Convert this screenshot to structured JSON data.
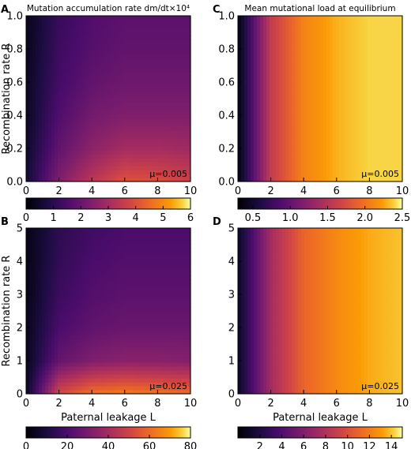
{
  "chart_data": [
    {
      "panel": "A",
      "type": "heatmap",
      "title": "Mutation accumulation rate dm/dt×10⁴",
      "xlabel": "",
      "ylabel": "Recombination rate R",
      "xlim": [
        0,
        10
      ],
      "ylim": [
        0,
        1.0
      ],
      "xticks": [
        "0",
        "2",
        "4",
        "6",
        "8",
        "10"
      ],
      "yticks": [
        "0.0",
        "0.2",
        "0.4",
        "0.6",
        "0.8",
        "1.0"
      ],
      "annotation": "μ=0.005",
      "colormap": "inferno",
      "colorbar": {
        "range": [
          0,
          6
        ],
        "ticks": [
          "0",
          "1",
          "2",
          "3",
          "4",
          "5",
          "6"
        ]
      },
      "x": [
        0,
        2,
        4,
        6,
        8,
        10
      ],
      "y": [
        0.0,
        0.2,
        0.4,
        0.6,
        0.8,
        1.0
      ],
      "z": [
        [
          0.6,
          2.4,
          3.4,
          4.1,
          4.0,
          3.7
        ],
        [
          0.5,
          1.9,
          2.6,
          3.0,
          3.0,
          2.9
        ],
        [
          0.4,
          1.6,
          2.2,
          2.4,
          2.4,
          2.4
        ],
        [
          0.4,
          1.4,
          1.9,
          2.1,
          2.1,
          2.1
        ],
        [
          0.3,
          1.3,
          1.7,
          1.9,
          1.9,
          1.9
        ],
        [
          0.3,
          1.2,
          1.6,
          1.8,
          1.8,
          1.8
        ]
      ]
    },
    {
      "panel": "C",
      "type": "heatmap",
      "title": "Mean mutational load at equilibrium",
      "xlabel": "",
      "ylabel": "",
      "xlim": [
        0,
        10
      ],
      "ylim": [
        0,
        1.0
      ],
      "xticks": [
        "0",
        "2",
        "4",
        "6",
        "8",
        "10"
      ],
      "yticks": [
        "0.0",
        "0.2",
        "0.4",
        "0.6",
        "0.8",
        "1.0"
      ],
      "annotation": "μ=0.005",
      "colormap": "inferno",
      "colorbar": {
        "range": [
          0.3,
          2.5
        ],
        "ticks": [
          "0.5",
          "1.0",
          "1.5",
          "2.0",
          "2.5"
        ]
      },
      "x": [
        0,
        2,
        4,
        6,
        8,
        10
      ],
      "y": [
        0.0,
        0.2,
        0.4,
        0.6,
        0.8,
        1.0
      ],
      "z": [
        [
          0.35,
          1.6,
          2.1,
          2.3,
          2.4,
          2.4
        ],
        [
          0.35,
          1.6,
          2.1,
          2.3,
          2.4,
          2.4
        ],
        [
          0.35,
          1.6,
          2.1,
          2.3,
          2.4,
          2.4
        ],
        [
          0.35,
          1.6,
          2.1,
          2.3,
          2.4,
          2.4
        ],
        [
          0.35,
          1.6,
          2.1,
          2.3,
          2.4,
          2.4
        ],
        [
          0.35,
          1.6,
          2.1,
          2.3,
          2.4,
          2.4
        ]
      ]
    },
    {
      "panel": "B",
      "type": "heatmap",
      "title": "",
      "xlabel": "Paternal leakage L",
      "ylabel": "Recombination rate R",
      "xlim": [
        0,
        10
      ],
      "ylim": [
        0,
        5
      ],
      "xticks": [
        "0",
        "2",
        "4",
        "6",
        "8",
        "10"
      ],
      "yticks": [
        "0",
        "1",
        "2",
        "3",
        "4",
        "5"
      ],
      "annotation": "μ=0.025",
      "colormap": "inferno",
      "colorbar": {
        "range": [
          0,
          80
        ],
        "ticks": [
          "0",
          "20",
          "40",
          "60",
          "80"
        ]
      },
      "x": [
        0,
        2,
        4,
        6,
        8,
        10
      ],
      "y": [
        0,
        1,
        2,
        3,
        4,
        5
      ],
      "z": [
        [
          5,
          52,
          62,
          64,
          62,
          60
        ],
        [
          4,
          26,
          32,
          34,
          34,
          33
        ],
        [
          4,
          20,
          25,
          27,
          27,
          27
        ],
        [
          3,
          17,
          22,
          24,
          24,
          24
        ],
        [
          3,
          15,
          20,
          22,
          22,
          22
        ],
        [
          3,
          14,
          18,
          20,
          20,
          20
        ]
      ]
    },
    {
      "panel": "D",
      "type": "heatmap",
      "title": "",
      "xlabel": "Paternal leakage L",
      "ylabel": "",
      "xlim": [
        0,
        10
      ],
      "ylim": [
        0,
        5
      ],
      "xticks": [
        "0",
        "2",
        "4",
        "6",
        "8",
        "10"
      ],
      "yticks": [
        "0",
        "1",
        "2",
        "3",
        "4",
        "5"
      ],
      "annotation": "μ=0.025",
      "colormap": "inferno",
      "colorbar": {
        "range": [
          0,
          15
        ],
        "ticks": [
          "2",
          "4",
          "6",
          "8",
          "10",
          "12",
          "14"
        ]
      },
      "x": [
        0,
        2,
        4,
        6,
        8,
        10
      ],
      "y": [
        0,
        1,
        2,
        3,
        4,
        5
      ],
      "z": [
        [
          1,
          7.5,
          11,
          12.5,
          13.5,
          14
        ],
        [
          1,
          7.5,
          11,
          12.5,
          13.5,
          14
        ],
        [
          1,
          7.5,
          11,
          12.5,
          13.5,
          14
        ],
        [
          1,
          7.5,
          11,
          12.5,
          13.5,
          14
        ],
        [
          1,
          7.5,
          11,
          12.5,
          13.5,
          14
        ],
        [
          1,
          7.5,
          11,
          12.5,
          13.5,
          14
        ]
      ]
    }
  ]
}
